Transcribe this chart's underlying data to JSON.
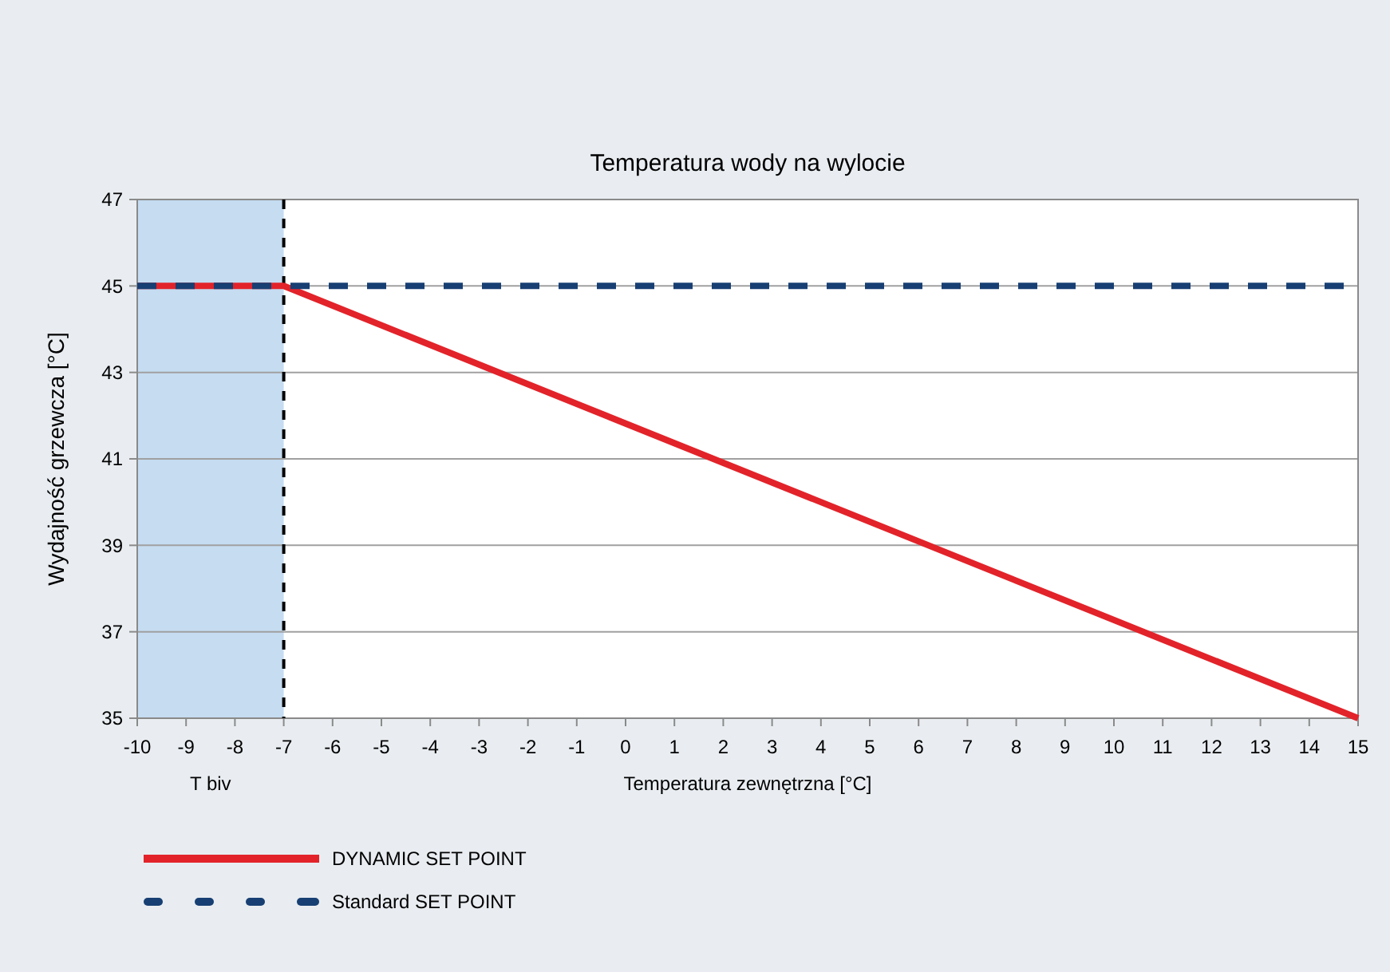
{
  "chart_data": {
    "type": "line",
    "title": "Temperatura wody na wylocie",
    "xlabel": "Temperatura zewnętrzna [°C]",
    "ylabel": "Wydajność grzewcza [°C]",
    "xlim": [
      -10,
      15
    ],
    "xticks": [
      -10,
      -9,
      -8,
      -7,
      -6,
      -5,
      -4,
      -3,
      -2,
      -1,
      0,
      1,
      2,
      3,
      4,
      5,
      6,
      7,
      8,
      9,
      10,
      11,
      12,
      13,
      14,
      15
    ],
    "ylim": [
      35,
      47
    ],
    "yticks": [
      35,
      37,
      39,
      41,
      43,
      45,
      47
    ],
    "grid": "y",
    "legend": "bottom",
    "series": [
      {
        "name": "DYNAMIC SET POINT",
        "color": "#e2232a",
        "x": [
          -10,
          -7,
          15
        ],
        "values": [
          45,
          45,
          35
        ],
        "line_style": "solid"
      },
      {
        "name": "Standard SET POINT",
        "color": "#173f73",
        "x": [
          -10,
          15
        ],
        "values": [
          45,
          45
        ],
        "line_style": "dashed"
      }
    ],
    "bands": [
      {
        "axis": "x",
        "from": -10,
        "to": -7,
        "label": "T biv",
        "color": "#c5dcf1"
      }
    ],
    "ref_lines": [
      {
        "axis": "x",
        "value": -7,
        "color": "#000000",
        "line_style": "dashed"
      }
    ]
  }
}
